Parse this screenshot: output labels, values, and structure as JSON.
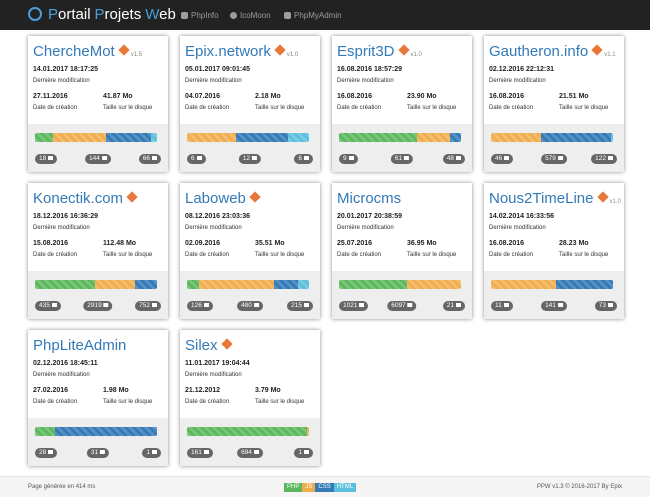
{
  "header": {
    "brand": [
      "Portail",
      "Projets",
      "Web"
    ],
    "nav": [
      "PhpInfo",
      "IcoMoon",
      "PhpMyAdmin"
    ]
  },
  "labels": {
    "modified": "Dernière modification",
    "created": "Date de création",
    "size": "Taille sur le disque"
  },
  "languages": [
    {
      "name": "PHP",
      "color": "#5cb85c"
    },
    {
      "name": "JS",
      "color": "#f0ad4e"
    },
    {
      "name": "CSS",
      "color": "#337ab7"
    },
    {
      "name": "HTML",
      "color": "#5bc0de"
    }
  ],
  "projects": [
    {
      "name": "ChercheMot",
      "icon": true,
      "version": "v1.5",
      "modified": "14.01.2017 18:17:25",
      "created": "27.11.2016",
      "size": "41.87 Mo",
      "shares": [
        15,
        43,
        37,
        5
      ],
      "folders": 18,
      "files": 144,
      "images": 66
    },
    {
      "name": "Epix.network",
      "icon": true,
      "version": "v1.0",
      "modified": "05.01.2017 09:01:45",
      "created": "04.07.2016",
      "size": "2.18 Mo",
      "shares": [
        0,
        40,
        43,
        17
      ],
      "folders": 6,
      "files": 12,
      "images": 6
    },
    {
      "name": "Esprit3D",
      "icon": true,
      "version": "v1.0",
      "modified": "16.08.2016 18:57:29",
      "created": "16.08.2016",
      "size": "23.90 Mo",
      "shares": [
        64,
        27,
        9,
        0
      ],
      "folders": 9,
      "files": 61,
      "images": 48
    },
    {
      "name": "Gautheron.info",
      "icon": true,
      "version": "v1.1",
      "modified": "02.12.2016 22:12:31",
      "created": "16.08.2016",
      "size": "21.51 Mo",
      "shares": [
        0,
        41,
        57,
        2
      ],
      "folders": 46,
      "files": 579,
      "images": 122
    },
    {
      "name": "Konectik.com",
      "icon": true,
      "modified": "18.12.2016 16:36:29",
      "created": "15.08.2016",
      "size": "112.48 Mo",
      "shares": [
        49,
        33,
        18,
        0
      ],
      "folders": 435,
      "files": 2919,
      "images": 752
    },
    {
      "name": "Laboweb",
      "icon": true,
      "modified": "08.12.2016 23:03:36",
      "created": "02.09.2016",
      "size": "35.51 Mo",
      "shares": [
        10,
        61,
        20,
        9
      ],
      "folders": 126,
      "files": 480,
      "images": 215
    },
    {
      "name": "Microcms",
      "icon": false,
      "modified": "20.01.2017 20:38:59",
      "created": "25.07.2016",
      "size": "36.95 Mo",
      "shares": [
        56,
        44,
        0,
        0
      ],
      "folders": 1021,
      "files": 6097,
      "images": 21
    },
    {
      "name": "Nous2TimeLine",
      "icon": true,
      "version": "v1.0",
      "modified": "14.02.2014 16:33:56",
      "created": "16.08.2016",
      "size": "28.23 Mo",
      "shares": [
        0,
        53,
        47,
        0
      ],
      "folders": 11,
      "files": 141,
      "images": 73
    },
    {
      "name": "PhpLiteAdmin",
      "icon": false,
      "modified": "02.12.2016 18:45:11",
      "created": "27.02.2016",
      "size": "1.98 Mo",
      "shares": [
        16,
        0,
        84,
        0
      ],
      "folders": 28,
      "files": 31,
      "images": 1
    },
    {
      "name": "Silex",
      "icon": true,
      "modified": "11.01.2017 19:04:44",
      "created": "21.12.2012",
      "size": "3.79 Mo",
      "shares": [
        98,
        2,
        0,
        0
      ],
      "folders": 161,
      "files": 694,
      "images": 1
    }
  ],
  "footer": {
    "timing": "Page générée en 414 ms",
    "credit": "PPW v1.3 © 2016-2017 By Epix"
  }
}
